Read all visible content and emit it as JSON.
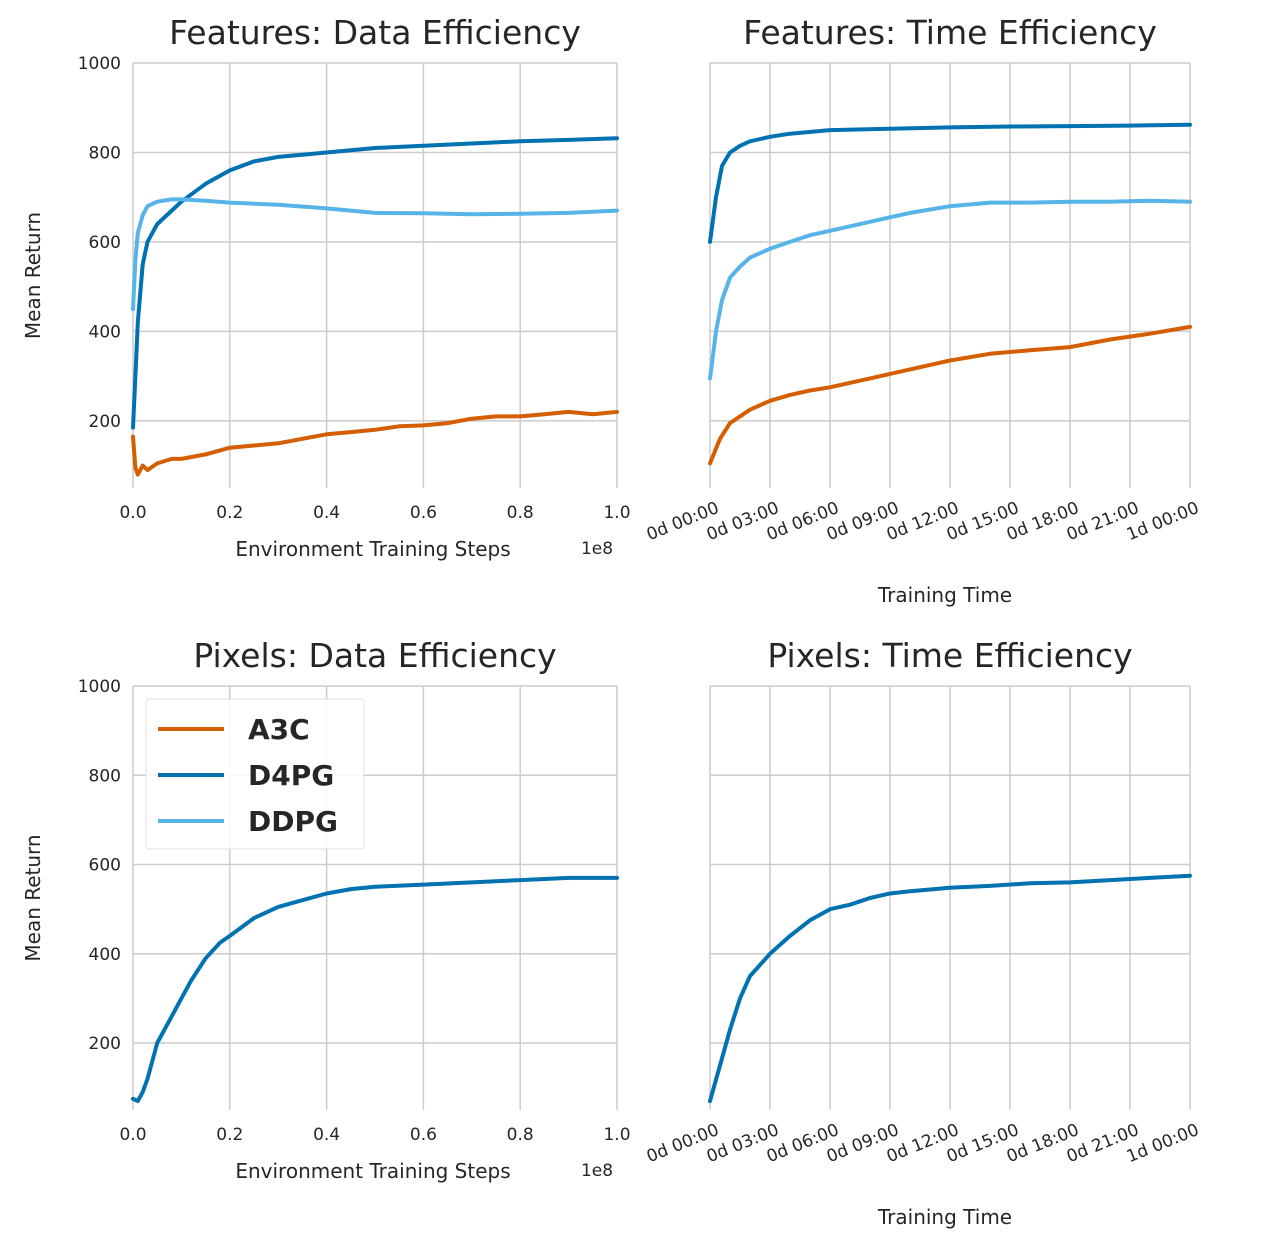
{
  "colors": {
    "A3C": "#d55e00",
    "D4PG": "#0072b2",
    "DDPG": "#56b4e9"
  },
  "legend": {
    "panel": 2,
    "entries": [
      "A3C",
      "D4PG",
      "DDPG"
    ]
  },
  "chart_data": [
    {
      "type": "line",
      "title": "Features: Data Efficiency",
      "xlabel": "Environment Training Steps",
      "ylabel": "Mean Return",
      "x_offset_label": "1e8",
      "xlim": [
        0,
        1.0
      ],
      "ylim": [
        50,
        1000
      ],
      "xticks": [
        0.0,
        0.2,
        0.4,
        0.6,
        0.8,
        1.0
      ],
      "xtick_labels": [
        "0.0",
        "0.2",
        "0.4",
        "0.6",
        "0.8",
        "1.0"
      ],
      "yticks": [
        200,
        400,
        600,
        800,
        1000
      ],
      "ytick_labels": [
        "200",
        "400",
        "600",
        "800",
        "1000"
      ],
      "grid": true,
      "series": [
        {
          "name": "A3C",
          "x": [
            0.0,
            0.005,
            0.01,
            0.02,
            0.03,
            0.05,
            0.08,
            0.1,
            0.15,
            0.2,
            0.25,
            0.3,
            0.35,
            0.4,
            0.45,
            0.5,
            0.55,
            0.6,
            0.65,
            0.7,
            0.75,
            0.8,
            0.85,
            0.9,
            0.95,
            1.0
          ],
          "y": [
            165,
            95,
            80,
            100,
            90,
            105,
            115,
            115,
            125,
            140,
            145,
            150,
            160,
            170,
            175,
            180,
            188,
            190,
            195,
            205,
            210,
            210,
            215,
            220,
            215,
            220
          ]
        },
        {
          "name": "D4PG",
          "x": [
            0.0,
            0.005,
            0.01,
            0.02,
            0.03,
            0.05,
            0.08,
            0.1,
            0.15,
            0.2,
            0.25,
            0.3,
            0.35,
            0.4,
            0.5,
            0.6,
            0.7,
            0.8,
            0.9,
            1.0
          ],
          "y": [
            185,
            300,
            420,
            550,
            600,
            640,
            670,
            690,
            730,
            760,
            780,
            790,
            795,
            800,
            810,
            815,
            820,
            825,
            828,
            832
          ]
        },
        {
          "name": "DDPG",
          "x": [
            0.0,
            0.005,
            0.01,
            0.02,
            0.03,
            0.05,
            0.08,
            0.1,
            0.15,
            0.2,
            0.3,
            0.4,
            0.5,
            0.6,
            0.7,
            0.8,
            0.9,
            1.0
          ],
          "y": [
            450,
            560,
            620,
            660,
            680,
            690,
            695,
            695,
            692,
            688,
            683,
            675,
            665,
            664,
            662,
            663,
            665,
            670
          ]
        }
      ]
    },
    {
      "type": "line",
      "title": "Features: Time Efficiency",
      "xlabel": "Training Time",
      "ylabel": "",
      "xlim": [
        0,
        24
      ],
      "ylim": [
        50,
        1000
      ],
      "xticks": [
        0,
        3,
        6,
        9,
        12,
        15,
        18,
        21,
        24
      ],
      "xtick_labels": [
        "0d 00:00",
        "0d 03:00",
        "0d 06:00",
        "0d 09:00",
        "0d 12:00",
        "0d 15:00",
        "0d 18:00",
        "0d 21:00",
        "1d 00:00"
      ],
      "yticks": [
        200,
        400,
        600,
        800,
        1000
      ],
      "ytick_labels": [],
      "grid": true,
      "series": [
        {
          "name": "A3C",
          "x": [
            0,
            0.5,
            1,
            2,
            3,
            4,
            5,
            6,
            8,
            10,
            12,
            14,
            16,
            18,
            20,
            22,
            24
          ],
          "y": [
            105,
            160,
            195,
            225,
            245,
            258,
            268,
            275,
            295,
            315,
            335,
            350,
            358,
            365,
            382,
            395,
            410
          ]
        },
        {
          "name": "D4PG",
          "x": [
            0,
            0.3,
            0.6,
            1,
            1.5,
            2,
            3,
            4,
            6,
            9,
            12,
            15,
            18,
            21,
            24
          ],
          "y": [
            600,
            700,
            770,
            800,
            815,
            825,
            835,
            842,
            850,
            853,
            856,
            858,
            859,
            860,
            862
          ]
        },
        {
          "name": "DDPG",
          "x": [
            0,
            0.3,
            0.6,
            1,
            1.5,
            2,
            3,
            4,
            5,
            6,
            8,
            10,
            12,
            14,
            16,
            18,
            20,
            22,
            24
          ],
          "y": [
            295,
            400,
            470,
            520,
            545,
            565,
            585,
            600,
            615,
            625,
            645,
            665,
            680,
            688,
            688,
            690,
            690,
            692,
            690
          ]
        }
      ]
    },
    {
      "type": "line",
      "title": "Pixels: Data Efficiency",
      "xlabel": "Environment Training Steps",
      "ylabel": "Mean Return",
      "x_offset_label": "1e8",
      "xlim": [
        0,
        1.0
      ],
      "ylim": [
        50,
        1000
      ],
      "xticks": [
        0.0,
        0.2,
        0.4,
        0.6,
        0.8,
        1.0
      ],
      "xtick_labels": [
        "0.0",
        "0.2",
        "0.4",
        "0.6",
        "0.8",
        "1.0"
      ],
      "yticks": [
        200,
        400,
        600,
        800,
        1000
      ],
      "ytick_labels": [
        "200",
        "400",
        "600",
        "800",
        "1000"
      ],
      "grid": true,
      "series": [
        {
          "name": "D4PG",
          "x": [
            0.0,
            0.01,
            0.02,
            0.03,
            0.05,
            0.08,
            0.1,
            0.12,
            0.15,
            0.18,
            0.2,
            0.25,
            0.3,
            0.35,
            0.4,
            0.45,
            0.5,
            0.6,
            0.7,
            0.8,
            0.9,
            1.0
          ],
          "y": [
            75,
            70,
            90,
            120,
            200,
            260,
            300,
            340,
            390,
            425,
            440,
            480,
            505,
            520,
            535,
            545,
            550,
            555,
            560,
            565,
            570,
            570
          ]
        }
      ]
    },
    {
      "type": "line",
      "title": "Pixels: Time Efficiency",
      "xlabel": "Training Time",
      "ylabel": "",
      "xlim": [
        0,
        24
      ],
      "ylim": [
        50,
        1000
      ],
      "xticks": [
        0,
        3,
        6,
        9,
        12,
        15,
        18,
        21,
        24
      ],
      "xtick_labels": [
        "0d 00:00",
        "0d 03:00",
        "0d 06:00",
        "0d 09:00",
        "0d 12:00",
        "0d 15:00",
        "0d 18:00",
        "0d 21:00",
        "1d 00:00"
      ],
      "yticks": [
        200,
        400,
        600,
        800,
        1000
      ],
      "ytick_labels": [],
      "grid": true,
      "series": [
        {
          "name": "D4PG",
          "x": [
            0,
            0.5,
            1,
            1.5,
            2,
            3,
            4,
            5,
            6,
            7,
            8,
            9,
            10,
            12,
            14,
            16,
            18,
            20,
            22,
            24
          ],
          "y": [
            70,
            150,
            230,
            300,
            350,
            400,
            440,
            475,
            500,
            510,
            525,
            535,
            540,
            548,
            552,
            558,
            560,
            565,
            570,
            575
          ]
        }
      ]
    }
  ]
}
